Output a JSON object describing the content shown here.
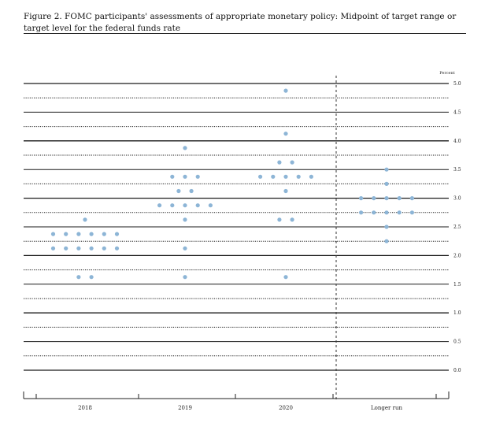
{
  "figure": {
    "title": "Figure 2. FOMC participants' assessments of appropriate monetary policy: Midpoint of target range or target level for the federal funds rate"
  },
  "chart_data": {
    "type": "scatter",
    "title": "Figure 2. FOMC participants' assessments of appropriate monetary policy: Midpoint of target range or target level for the federal funds rate",
    "ylabel": "Percent",
    "ylim": [
      0.0,
      5.0
    ],
    "yticks": [
      "5.0",
      "4.5",
      "4.0",
      "3.5",
      "3.0",
      "2.5",
      "2.0",
      "1.5",
      "1.0",
      "0.5",
      "0.0"
    ],
    "categories": [
      "2018",
      "2019",
      "2020",
      "Longer run"
    ],
    "dot_color": "#8db5d6",
    "line_color": "#1a1a1a",
    "divider": "dashed line between 2020 and Longer run",
    "dots": [
      {
        "category": "2018",
        "y": 2.625,
        "count": 1
      },
      {
        "category": "2018",
        "y": 2.375,
        "count": 6
      },
      {
        "category": "2018",
        "y": 2.125,
        "count": 6
      },
      {
        "category": "2018",
        "y": 1.625,
        "count": 2
      },
      {
        "category": "2019",
        "y": 3.875,
        "count": 1
      },
      {
        "category": "2019",
        "y": 3.375,
        "count": 3
      },
      {
        "category": "2019",
        "y": 3.125,
        "count": 2
      },
      {
        "category": "2019",
        "y": 2.875,
        "count": 5
      },
      {
        "category": "2019",
        "y": 2.625,
        "count": 1
      },
      {
        "category": "2019",
        "y": 2.125,
        "count": 1
      },
      {
        "category": "2019",
        "y": 1.625,
        "count": 1
      },
      {
        "category": "2020",
        "y": 4.875,
        "count": 1
      },
      {
        "category": "2020",
        "y": 4.125,
        "count": 1
      },
      {
        "category": "2020",
        "y": 3.625,
        "count": 2
      },
      {
        "category": "2020",
        "y": 3.375,
        "count": 5
      },
      {
        "category": "2020",
        "y": 3.125,
        "count": 1
      },
      {
        "category": "2020",
        "y": 2.625,
        "count": 2
      },
      {
        "category": "2020",
        "y": 1.625,
        "count": 1
      },
      {
        "category": "Longer run",
        "y": 3.5,
        "count": 1
      },
      {
        "category": "Longer run",
        "y": 3.25,
        "count": 1
      },
      {
        "category": "Longer run",
        "y": 3.0,
        "count": 5
      },
      {
        "category": "Longer run",
        "y": 2.75,
        "count": 5
      },
      {
        "category": "Longer run",
        "y": 2.5,
        "count": 1
      },
      {
        "category": "Longer run",
        "y": 2.25,
        "count": 1
      }
    ]
  }
}
